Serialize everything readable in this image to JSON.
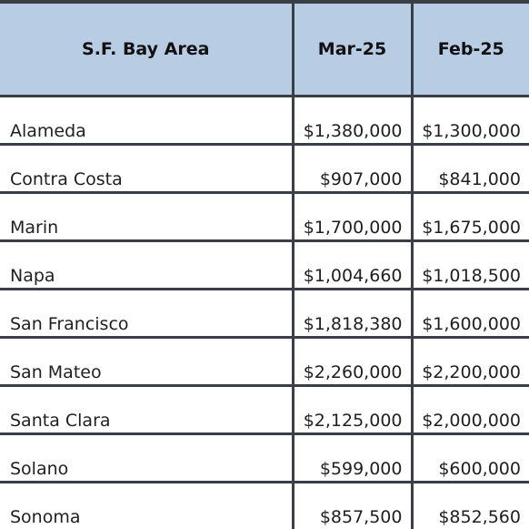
{
  "table": {
    "headers": [
      "S.F. Bay Area",
      "Mar-25",
      "Feb-25"
    ],
    "rows": [
      [
        "Alameda",
        "$1,380,000",
        "$1,300,000"
      ],
      [
        "Contra Costa",
        "$907,000",
        "$841,000"
      ],
      [
        "Marin",
        "$1,700,000",
        "$1,675,000"
      ],
      [
        "Napa",
        "$1,004,660",
        "$1,018,500"
      ],
      [
        "San Francisco",
        "$1,818,380",
        "$1,600,000"
      ],
      [
        "San Mateo",
        "$2,260,000",
        "$2,200,000"
      ],
      [
        "Santa Clara",
        "$2,125,000",
        "$2,000,000"
      ],
      [
        "Solano",
        "$599,000",
        "$600,000"
      ],
      [
        "Sonoma",
        "$857,500",
        "$852,560"
      ]
    ]
  },
  "colors": {
    "header_background": "#b8cce4",
    "border": "#3a3f47"
  }
}
